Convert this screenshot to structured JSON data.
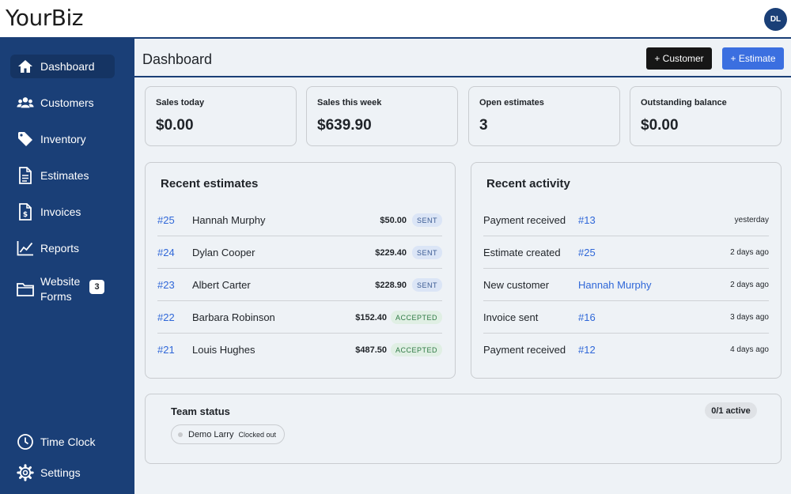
{
  "app": {
    "logo": "YourBiz",
    "avatar_initials": "DL"
  },
  "sidebar": {
    "items": [
      {
        "label": "Dashboard",
        "icon": "home-icon",
        "active": true
      },
      {
        "label": "Customers",
        "icon": "users-icon"
      },
      {
        "label": "Inventory",
        "icon": "tag-icon"
      },
      {
        "label": "Estimates",
        "icon": "document-icon"
      },
      {
        "label": "Invoices",
        "icon": "invoice-icon"
      },
      {
        "label": "Reports",
        "icon": "chart-line-icon"
      },
      {
        "label_line1": "Website",
        "label_line2": "Forms",
        "icon": "folder-icon",
        "badge": "3"
      },
      {
        "label": "Time Clock",
        "icon": "clock-icon"
      },
      {
        "label": "Settings",
        "icon": "gear-icon"
      }
    ]
  },
  "header": {
    "title": "Dashboard",
    "add_customer_label": "+ Customer",
    "add_estimate_label": "+ Estimate"
  },
  "stats": [
    {
      "label": "Sales today",
      "value": "$0.00"
    },
    {
      "label": "Sales this week",
      "value": "$639.90"
    },
    {
      "label": "Open estimates",
      "value": "3"
    },
    {
      "label": "Outstanding balance",
      "value": "$0.00"
    }
  ],
  "recent_estimates": {
    "title": "Recent estimates",
    "rows": [
      {
        "id": "#25",
        "name": "Hannah Murphy",
        "amount": "$50.00",
        "status": "SENT"
      },
      {
        "id": "#24",
        "name": "Dylan Cooper",
        "amount": "$229.40",
        "status": "SENT"
      },
      {
        "id": "#23",
        "name": "Albert Carter",
        "amount": "$228.90",
        "status": "SENT"
      },
      {
        "id": "#22",
        "name": "Barbara Robinson",
        "amount": "$152.40",
        "status": "ACCEPTED"
      },
      {
        "id": "#21",
        "name": "Louis Hughes",
        "amount": "$487.50",
        "status": "ACCEPTED"
      }
    ]
  },
  "recent_activity": {
    "title": "Recent activity",
    "rows": [
      {
        "label": "Payment received",
        "link": "#13",
        "time": "yesterday"
      },
      {
        "label": "Estimate created",
        "link": "#25",
        "time": "2 days ago"
      },
      {
        "label": "New customer",
        "link": "Hannah Murphy",
        "time": "2 days ago"
      },
      {
        "label": "Invoice sent",
        "link": "#16",
        "time": "3 days ago"
      },
      {
        "label": "Payment received",
        "link": "#12",
        "time": "4 days ago"
      }
    ]
  },
  "team": {
    "title": "Team status",
    "active_count": "0/1 active",
    "members": [
      {
        "name": "Demo Larry",
        "status": "Clocked out"
      }
    ]
  },
  "colors": {
    "sidebar": "#1a3f77",
    "link": "#2f67d8",
    "primary_button": "#3b6fe0",
    "dark_button": "#161616",
    "background": "#eef2f6"
  }
}
